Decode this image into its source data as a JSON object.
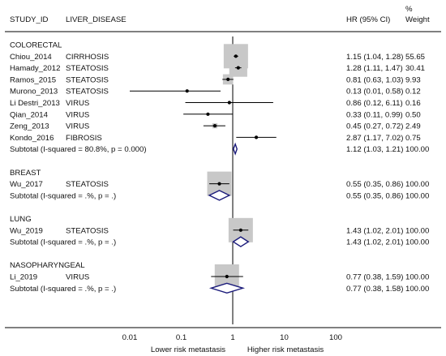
{
  "chart_data": {
    "type": "forest",
    "header": {
      "study": "STUDY_ID",
      "disease": "LIVER_DISEASE",
      "hr": "HR (95% CI)",
      "weight_line1": "%",
      "weight_line2": "Weight"
    },
    "groups": [
      {
        "name": "COLORECTAL",
        "studies": [
          {
            "study": "Chiou_2014",
            "disease": "CIRRHOSIS",
            "hr": 1.15,
            "lo": 1.04,
            "hi": 1.28,
            "hr_text": "1.15 (1.04, 1.28)",
            "weight": "55.65"
          },
          {
            "study": "Hamady_2012",
            "disease": "STEATOSIS",
            "hr": 1.28,
            "lo": 1.11,
            "hi": 1.47,
            "hr_text": "1.28 (1.11, 1.47)",
            "weight": "30.41"
          },
          {
            "study": "Ramos_2015",
            "disease": "STEATOSIS",
            "hr": 0.81,
            "lo": 0.63,
            "hi": 1.03,
            "hr_text": "0.81 (0.63, 1.03)",
            "weight": "9.93"
          },
          {
            "study": "Murono_2013",
            "disease": "STEATOSIS",
            "hr": 0.13,
            "lo": 0.01,
            "hi": 0.58,
            "hr_text": "0.13 (0.01, 0.58)",
            "weight": "0.12"
          },
          {
            "study": "Li Destri_2013",
            "disease": "VIRUS",
            "hr": 0.86,
            "lo": 0.12,
            "hi": 6.11,
            "hr_text": "0.86 (0.12, 6.11)",
            "weight": "0.16"
          },
          {
            "study": "Qian_2014",
            "disease": "VIRUS",
            "hr": 0.33,
            "lo": 0.11,
            "hi": 0.99,
            "hr_text": "0.33 (0.11, 0.99)",
            "weight": "0.50"
          },
          {
            "study": "Zeng_2013",
            "disease": "VIRUS",
            "hr": 0.45,
            "lo": 0.27,
            "hi": 0.72,
            "hr_text": "0.45 (0.27, 0.72)",
            "weight": "2.49"
          },
          {
            "study": "Kondo_2016",
            "disease": "FIBROSIS",
            "hr": 2.87,
            "lo": 1.17,
            "hi": 7.02,
            "hr_text": "2.87 (1.17, 7.02)",
            "weight": "0.75"
          }
        ],
        "subtotal": {
          "label": "Subtotal  (I-squared = 80.8%, p = 0.000)",
          "hr": 1.12,
          "lo": 1.03,
          "hi": 1.21,
          "hr_text": "1.12 (1.03, 1.21)",
          "weight": "100.00"
        }
      },
      {
        "name": "BREAST",
        "studies": [
          {
            "study": "Wu_2017",
            "disease": "STEATOSIS",
            "hr": 0.55,
            "lo": 0.35,
            "hi": 0.86,
            "hr_text": "0.55 (0.35, 0.86)",
            "weight": "100.00"
          }
        ],
        "subtotal": {
          "label": "Subtotal  (I-squared = .%, p = .)",
          "hr": 0.55,
          "lo": 0.35,
          "hi": 0.86,
          "hr_text": "0.55 (0.35, 0.86)",
          "weight": "100.00"
        }
      },
      {
        "name": "LUNG",
        "studies": [
          {
            "study": "Wu_2019",
            "disease": "STEATOSIS",
            "hr": 1.43,
            "lo": 1.02,
            "hi": 2.01,
            "hr_text": "1.43 (1.02, 2.01)",
            "weight": "100.00"
          }
        ],
        "subtotal": {
          "label": "Subtotal  (I-squared = .%, p = .)",
          "hr": 1.43,
          "lo": 1.02,
          "hi": 2.01,
          "hr_text": "1.43 (1.02, 2.01)",
          "weight": "100.00"
        }
      },
      {
        "name": "NASOPHARYNGEAL",
        "studies": [
          {
            "study": "Li_2019",
            "disease": "VIRUS",
            "hr": 0.77,
            "lo": 0.38,
            "hi": 1.59,
            "hr_text": "0.77 (0.38, 1.59)",
            "weight": "100.00"
          }
        ],
        "subtotal": {
          "label": "Subtotal  (I-squared = .%, p = .)",
          "hr": 0.77,
          "lo": 0.38,
          "hi": 1.58,
          "hr_text": "0.77 (0.38, 1.58)",
          "weight": "100.00"
        }
      }
    ],
    "x_axis": {
      "scale": "log",
      "ticks": [
        0.01,
        0.1,
        1,
        10,
        100
      ],
      "tick_labels": [
        "0.01",
        "0.1",
        "1",
        "10",
        "100"
      ],
      "reference_line": 1,
      "left_label": "Lower risk metastasis",
      "right_label": "Higher risk metastasis"
    },
    "colors": {
      "box": "#c8c8c8",
      "diamond": "#1a1a7a",
      "line": "#000000",
      "text": "#111111"
    }
  }
}
